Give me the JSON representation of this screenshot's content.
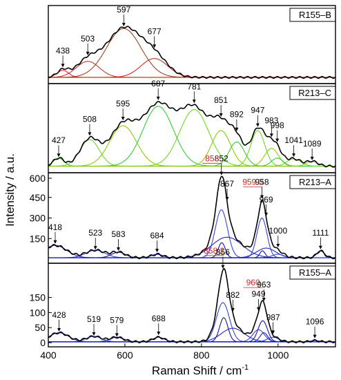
{
  "chart_data": {
    "type": "line",
    "xlabel": "Raman Shift / cm",
    "xlabel_superscript": "-1",
    "ylabel": "Intensity / a.u.",
    "xlim": [
      400,
      1150
    ],
    "x_ticks": [
      400,
      600,
      800,
      1000
    ],
    "panels": [
      {
        "label": "R155–B",
        "ylim": [
          0,
          1
        ],
        "baseline": 0.03,
        "colors": {
          "envelope": "#000000",
          "components": [
            "#d62728",
            "#c0392b",
            "#a04020"
          ],
          "baseline": "#e08070"
        },
        "peaks": [
          {
            "pos": 438,
            "height": 0.1,
            "width": 15,
            "label": "438"
          },
          {
            "pos": 503,
            "height": 0.23,
            "width": 30,
            "label": "503"
          },
          {
            "pos": 597,
            "height": 0.7,
            "width": 45,
            "label": "597"
          },
          {
            "pos": 677,
            "height": 0.27,
            "width": 35,
            "label": "677"
          }
        ]
      },
      {
        "label": "R213–C",
        "ylim": [
          0,
          1
        ],
        "baseline": 0.03,
        "colors": {
          "envelope": "#000000",
          "components": [
            "#33cc33",
            "#66dd22",
            "#88cc00"
          ],
          "baseline": "#99dd66"
        },
        "peaks": [
          {
            "pos": 427,
            "height": 0.1,
            "width": 14,
            "label": "427"
          },
          {
            "pos": 508,
            "height": 0.33,
            "width": 25,
            "label": "508"
          },
          {
            "pos": 595,
            "height": 0.5,
            "width": 35,
            "label": "595"
          },
          {
            "pos": 687,
            "height": 0.74,
            "width": 40,
            "label": "687"
          },
          {
            "pos": 781,
            "height": 0.7,
            "width": 38,
            "label": "781"
          },
          {
            "pos": 851,
            "height": 0.44,
            "width": 25,
            "label": "851"
          },
          {
            "pos": 892,
            "height": 0.3,
            "width": 20,
            "label": "892"
          },
          {
            "pos": 947,
            "height": 0.44,
            "width": 18,
            "label": "947"
          },
          {
            "pos": 983,
            "height": 0.22,
            "width": 18,
            "label": "983"
          },
          {
            "pos": 998,
            "height": 0.1,
            "width": 15,
            "label": "998"
          },
          {
            "pos": 1041,
            "height": 0.09,
            "width": 18,
            "label": "1041"
          },
          {
            "pos": 1089,
            "height": 0.06,
            "width": 15,
            "label": "1089"
          }
        ]
      },
      {
        "label": "R213–A",
        "ylim": [
          0,
          600
        ],
        "y_ticks": [
          600,
          450,
          300,
          150
        ],
        "baseline": 10,
        "colors": {
          "envelope": "#000000",
          "components": [
            "#2222cc",
            "#3344dd",
            "#1111aa"
          ],
          "baseline": "#2222cc"
        },
        "peaks": [
          {
            "pos": 418,
            "height": 90,
            "width": 30,
            "label": "418"
          },
          {
            "pos": 523,
            "height": 55,
            "width": 25,
            "label": "523"
          },
          {
            "pos": 583,
            "height": 40,
            "width": 18,
            "label": "583"
          },
          {
            "pos": 684,
            "height": 25,
            "width": 15,
            "label": "684"
          },
          {
            "pos": 852,
            "height": 350,
            "width": 16,
            "label": "852"
          },
          {
            "pos": 853,
            "height": 110,
            "width": 9,
            "label": "853",
            "highlight": true
          },
          {
            "pos": 867,
            "height": 150,
            "width": 40,
            "label": "867"
          },
          {
            "pos": 958,
            "height": 290,
            "width": 13,
            "label": "958"
          },
          {
            "pos": 959.3,
            "height": 50,
            "width": 7,
            "label": "959.3",
            "highlight": true
          },
          {
            "pos": 969,
            "height": 70,
            "width": 25,
            "label": "969"
          },
          {
            "pos": 1000,
            "height": 25,
            "width": 15,
            "label": "1000"
          },
          {
            "pos": 1111,
            "height": 50,
            "width": 10,
            "label": "1111"
          }
        ]
      },
      {
        "label": "R155–A",
        "ylim": [
          0,
          250
        ],
        "y_ticks": [
          150,
          100,
          50,
          0
        ],
        "baseline": 3,
        "colors": {
          "envelope": "#000000",
          "components": [
            "#2222cc",
            "#3344dd",
            "#1111aa"
          ],
          "baseline": "#2222cc"
        },
        "peaks": [
          {
            "pos": 428,
            "height": 30,
            "width": 25,
            "label": "428"
          },
          {
            "pos": 519,
            "height": 18,
            "width": 20,
            "label": "519"
          },
          {
            "pos": 579,
            "height": 15,
            "width": 18,
            "label": "579"
          },
          {
            "pos": 688,
            "height": 15,
            "width": 15,
            "label": "688"
          },
          {
            "pos": 856,
            "height": 130,
            "width": 17,
            "label": "856"
          },
          {
            "pos": 858.2,
            "height": 80,
            "width": 11,
            "label": "858.2",
            "highlight": true
          },
          {
            "pos": 882,
            "height": 45,
            "width": 30,
            "label": "882"
          },
          {
            "pos": 949,
            "height": 40,
            "width": 15,
            "label": "949"
          },
          {
            "pos": 960,
            "height": 70,
            "width": 12,
            "label": "960",
            "highlight": true
          },
          {
            "pos": 963,
            "height": 30,
            "width": 10,
            "label": "963"
          },
          {
            "pos": 987,
            "height": 15,
            "width": 15,
            "label": "987"
          },
          {
            "pos": 1096,
            "height": 4,
            "width": 10,
            "label": "1096"
          }
        ]
      }
    ]
  }
}
